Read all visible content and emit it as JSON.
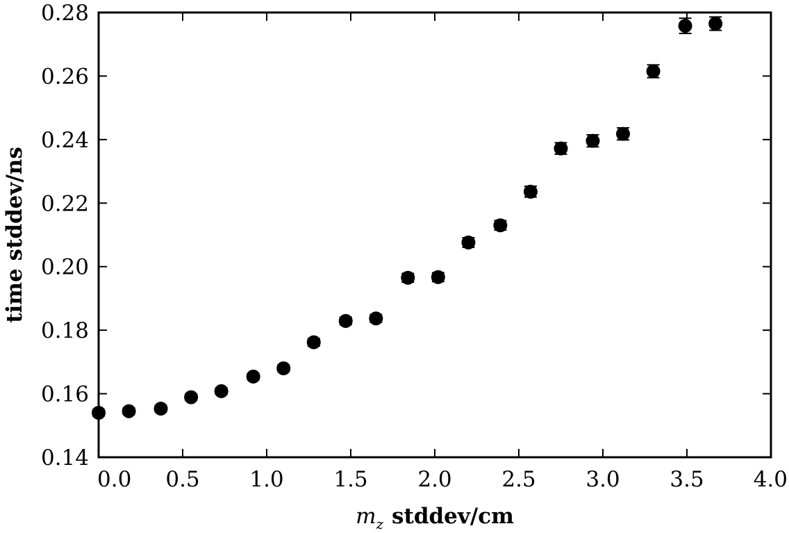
{
  "chart_data": {
    "type": "scatter",
    "title": "",
    "xlabel_var": "m",
    "xlabel_sub": "z",
    "xlabel_rest": "stddev/cm",
    "ylabel": "time stddev/ns",
    "xlim": [
      0.0,
      4.0
    ],
    "ylim": [
      0.14,
      0.28
    ],
    "xticks": [
      "0.0",
      "0.5",
      "1.0",
      "1.5",
      "2.0",
      "2.5",
      "3.0",
      "3.5",
      "4.0"
    ],
    "yticks": [
      "0.14",
      "0.16",
      "0.18",
      "0.20",
      "0.22",
      "0.24",
      "0.26",
      "0.28"
    ],
    "marker_color": "#000000",
    "grid": false,
    "series": [
      {
        "points": [
          {
            "x": 0.0,
            "y": 0.154,
            "err": 0.001
          },
          {
            "x": 0.18,
            "y": 0.1545,
            "err": 0.001
          },
          {
            "x": 0.37,
            "y": 0.1553,
            "err": 0.001
          },
          {
            "x": 0.55,
            "y": 0.1589,
            "err": 0.001
          },
          {
            "x": 0.73,
            "y": 0.1608,
            "err": 0.001
          },
          {
            "x": 0.92,
            "y": 0.1654,
            "err": 0.001
          },
          {
            "x": 1.1,
            "y": 0.168,
            "err": 0.001
          },
          {
            "x": 1.28,
            "y": 0.1762,
            "err": 0.0012
          },
          {
            "x": 1.47,
            "y": 0.1829,
            "err": 0.0012
          },
          {
            "x": 1.65,
            "y": 0.1837,
            "err": 0.0012
          },
          {
            "x": 1.84,
            "y": 0.1965,
            "err": 0.0014
          },
          {
            "x": 2.02,
            "y": 0.1967,
            "err": 0.0014
          },
          {
            "x": 2.2,
            "y": 0.2076,
            "err": 0.0015
          },
          {
            "x": 2.39,
            "y": 0.213,
            "err": 0.0015
          },
          {
            "x": 2.57,
            "y": 0.2236,
            "err": 0.0017
          },
          {
            "x": 2.75,
            "y": 0.2372,
            "err": 0.0018
          },
          {
            "x": 2.94,
            "y": 0.2396,
            "err": 0.0019
          },
          {
            "x": 3.12,
            "y": 0.2418,
            "err": 0.0019
          },
          {
            "x": 3.3,
            "y": 0.2615,
            "err": 0.002
          },
          {
            "x": 3.49,
            "y": 0.2758,
            "err": 0.0024
          },
          {
            "x": 3.67,
            "y": 0.2765,
            "err": 0.0021
          }
        ]
      }
    ]
  }
}
